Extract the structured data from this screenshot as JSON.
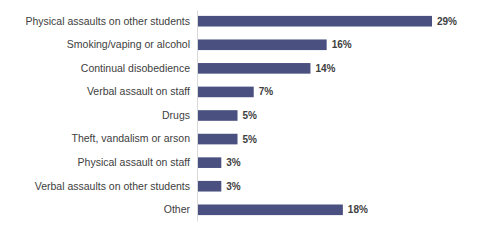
{
  "chart_data": {
    "type": "bar",
    "orientation": "horizontal",
    "categories": [
      "Physical assaults on other students",
      "Smoking/vaping or alcohol",
      "Continual disobedience",
      "Verbal assault on staff",
      "Drugs",
      "Theft, vandalism or arson",
      "Physical assault on staff",
      "Verbal assaults on other students",
      "Other"
    ],
    "values": [
      29,
      16,
      14,
      7,
      5,
      5,
      3,
      3,
      18
    ],
    "value_labels": [
      "29%",
      "16%",
      "14%",
      "7%",
      "5%",
      "5%",
      "3%",
      "3%",
      "18%"
    ],
    "color": "#4a5080",
    "data_labels": true,
    "tick_labels": "y"
  }
}
